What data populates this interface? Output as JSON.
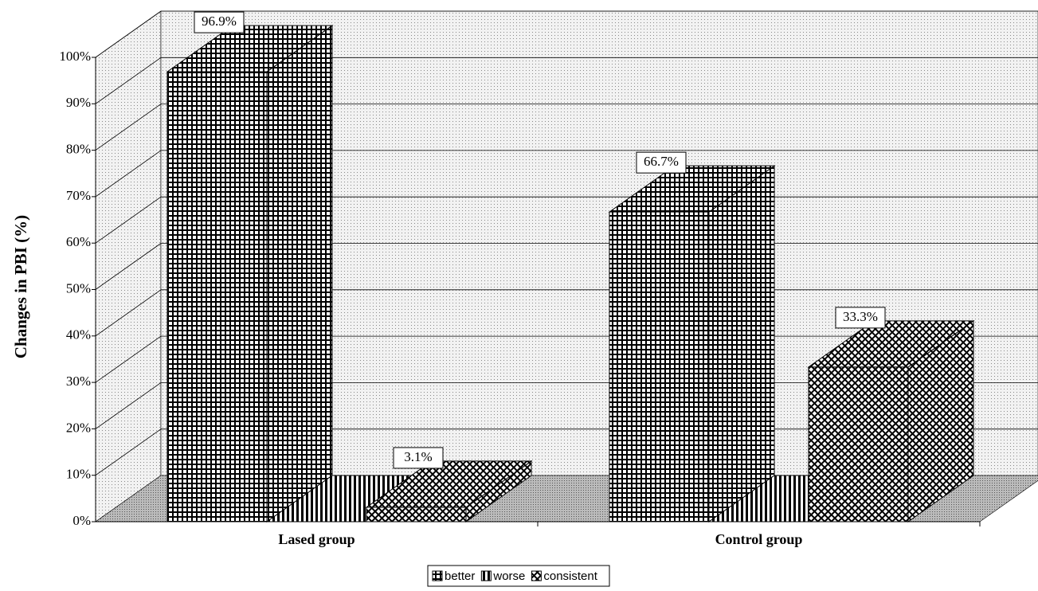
{
  "chart_data": {
    "type": "bar3d",
    "y_label": "Changes in PBI (%)",
    "categories": [
      "Lased group",
      "Control group"
    ],
    "series": [
      {
        "name": "better",
        "color": "#000000",
        "values": [
          96.9,
          66.7
        ],
        "value_labels": [
          "96.9%",
          "66.7%"
        ]
      },
      {
        "name": "worse",
        "color": "#000000",
        "values": [
          0,
          0
        ]
      },
      {
        "name": "consistent",
        "color": "#000000",
        "values": [
          3.1,
          33.3
        ],
        "value_labels": [
          "3.1%",
          "33.3%"
        ]
      }
    ],
    "ylim": [
      0,
      100
    ],
    "yticks": [
      {
        "value": 0,
        "label": "0%"
      },
      {
        "value": 10,
        "label": "10%"
      },
      {
        "value": 20,
        "label": "20%"
      },
      {
        "value": 30,
        "label": "30%"
      },
      {
        "value": 40,
        "label": "40%"
      },
      {
        "value": 50,
        "label": "50%"
      },
      {
        "value": 60,
        "label": "60%"
      },
      {
        "value": 70,
        "label": "70%"
      },
      {
        "value": 80,
        "label": "80%"
      },
      {
        "value": 90,
        "label": "90%"
      },
      {
        "value": 100,
        "label": "100%"
      }
    ],
    "grid": true,
    "legend": "bottom"
  }
}
